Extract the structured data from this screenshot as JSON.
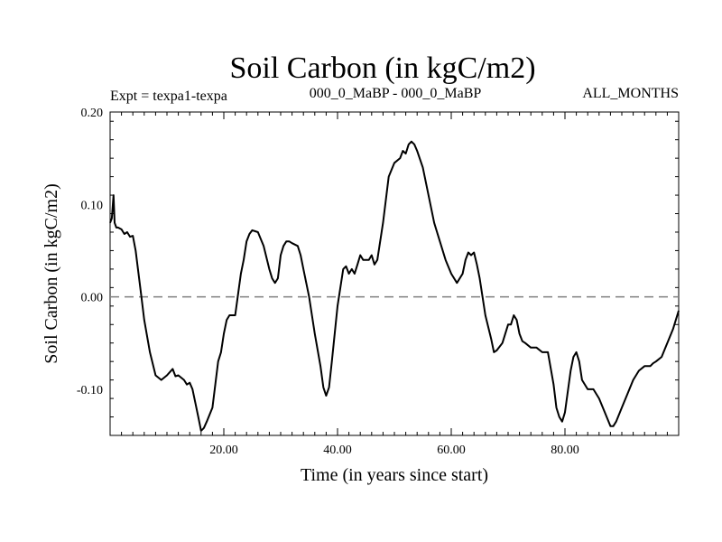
{
  "chart_data": {
    "type": "line",
    "title": "Soil Carbon (in kgC/m2)",
    "subtitle_left": "Expt = texpa1-texpa",
    "subtitle_center": "000_0_MaBP - 000_0_MaBP",
    "subtitle_right": "ALL_MONTHS",
    "xlabel": "Time (in years since start)",
    "ylabel": "Soil Carbon (in kgC/m2)",
    "xlim": [
      0,
      100
    ],
    "ylim": [
      -0.15,
      0.2
    ],
    "x_ticks": [
      {
        "value": 20,
        "label": "20.00"
      },
      {
        "value": 40,
        "label": "40.00"
      },
      {
        "value": 60,
        "label": "60.00"
      },
      {
        "value": 80,
        "label": "80.00"
      }
    ],
    "y_ticks": [
      {
        "value": 0.2,
        "label": "0.20"
      },
      {
        "value": 0.1,
        "label": "0.10"
      },
      {
        "value": 0.0,
        "label": "0.00"
      },
      {
        "value": -0.1,
        "label": "-0.10"
      }
    ],
    "reference_line": {
      "y": 0.0,
      "style": "dashed",
      "color": "#808080"
    },
    "grid": false,
    "series": [
      {
        "color": "#000000",
        "x": [
          0.0,
          0.3,
          0.6,
          0.8,
          1.1,
          1.4,
          2.0,
          2.5,
          3.0,
          3.5,
          4.0,
          4.5,
          5.0,
          5.5,
          6.0,
          7.0,
          8.0,
          9.0,
          10.0,
          11.0,
          11.5,
          12.0,
          13.0,
          13.5,
          14.0,
          14.5,
          15.0,
          15.5,
          16.0,
          16.5,
          17.0,
          18.0,
          19.0,
          19.5,
          20.0,
          20.5,
          21.0,
          22.0,
          23.0,
          23.5,
          24.0,
          24.5,
          25.0,
          26.0,
          27.0,
          28.0,
          28.5,
          29.0,
          29.5,
          30.0,
          30.5,
          31.0,
          31.5,
          32.0,
          33.0,
          33.5,
          34.0,
          35.0,
          36.0,
          37.0,
          37.5,
          38.0,
          38.5,
          39.0,
          40.0,
          41.0,
          41.5,
          42.0,
          42.5,
          43.0,
          43.5,
          44.0,
          44.5,
          45.0,
          45.5,
          46.0,
          46.5,
          47.0,
          48.0,
          49.0,
          50.0,
          51.0,
          51.5,
          52.0,
          52.5,
          53.0,
          53.5,
          54.0,
          55.0,
          56.0,
          57.0,
          58.0,
          59.0,
          60.0,
          61.0,
          62.0,
          62.5,
          63.0,
          63.5,
          64.0,
          64.5,
          65.0,
          66.0,
          67.0,
          67.5,
          68.0,
          69.0,
          70.0,
          70.5,
          71.0,
          71.5,
          72.0,
          72.5,
          73.0,
          74.0,
          75.0,
          76.0,
          77.0,
          78.0,
          78.5,
          79.0,
          79.5,
          80.0,
          81.0,
          81.5,
          82.0,
          82.5,
          83.0,
          84.0,
          85.0,
          86.0,
          87.0,
          88.0,
          88.5,
          89.0,
          90.0,
          91.0,
          92.0,
          93.0,
          94.0,
          95.0,
          95.5,
          96.0,
          97.0,
          98.0,
          99.0,
          100.0
        ],
        "y": [
          0.08,
          0.085,
          0.11,
          0.08,
          0.075,
          0.075,
          0.073,
          0.068,
          0.07,
          0.065,
          0.066,
          0.05,
          0.025,
          0.0,
          -0.025,
          -0.06,
          -0.085,
          -0.09,
          -0.085,
          -0.078,
          -0.086,
          -0.085,
          -0.09,
          -0.095,
          -0.093,
          -0.1,
          -0.115,
          -0.13,
          -0.145,
          -0.142,
          -0.135,
          -0.12,
          -0.07,
          -0.06,
          -0.04,
          -0.025,
          -0.02,
          -0.02,
          0.025,
          0.04,
          0.06,
          0.068,
          0.072,
          0.07,
          0.055,
          0.03,
          0.02,
          0.015,
          0.02,
          0.045,
          0.055,
          0.06,
          0.06,
          0.058,
          0.055,
          0.045,
          0.03,
          0.0,
          -0.04,
          -0.075,
          -0.098,
          -0.107,
          -0.098,
          -0.07,
          -0.01,
          0.03,
          0.033,
          0.025,
          0.03,
          0.025,
          0.035,
          0.045,
          0.04,
          0.04,
          0.04,
          0.045,
          0.035,
          0.04,
          0.08,
          0.13,
          0.145,
          0.15,
          0.158,
          0.155,
          0.165,
          0.168,
          0.165,
          0.158,
          0.14,
          0.11,
          0.08,
          0.06,
          0.04,
          0.025,
          0.015,
          0.025,
          0.04,
          0.048,
          0.045,
          0.048,
          0.035,
          0.02,
          -0.02,
          -0.045,
          -0.06,
          -0.058,
          -0.05,
          -0.03,
          -0.03,
          -0.02,
          -0.025,
          -0.04,
          -0.048,
          -0.05,
          -0.055,
          -0.055,
          -0.06,
          -0.06,
          -0.095,
          -0.12,
          -0.13,
          -0.135,
          -0.125,
          -0.08,
          -0.065,
          -0.06,
          -0.07,
          -0.09,
          -0.1,
          -0.1,
          -0.11,
          -0.125,
          -0.14,
          -0.14,
          -0.135,
          -0.12,
          -0.105,
          -0.09,
          -0.08,
          -0.075,
          -0.075,
          -0.072,
          -0.07,
          -0.065,
          -0.05,
          -0.035,
          -0.015
        ]
      }
    ]
  }
}
